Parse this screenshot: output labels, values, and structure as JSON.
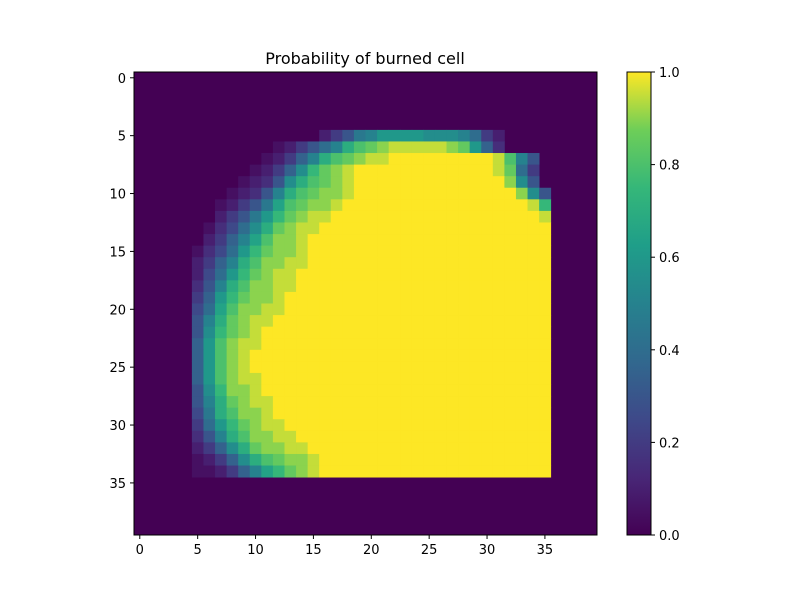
{
  "chart_data": {
    "type": "heatmap",
    "title": "Probability of burned cell",
    "xlabel": "",
    "ylabel": "",
    "grid": false,
    "legend": "colorbar-right",
    "colormap": "viridis",
    "x_ticks": [
      "0",
      "5",
      "10",
      "15",
      "20",
      "25",
      "30",
      "35"
    ],
    "y_ticks": [
      "0",
      "5",
      "10",
      "15",
      "20",
      "25",
      "30",
      "35"
    ],
    "colorbar": {
      "range": [
        0.0,
        1.0
      ],
      "ticks": [
        "0.0",
        "0.2",
        "0.4",
        "0.6",
        "0.8",
        "1.0"
      ]
    },
    "grid_size": [
      40,
      40
    ],
    "burn_region": {
      "x_range": [
        5,
        35
      ],
      "y_range": [
        5,
        35
      ]
    },
    "rows": [
      "",
      "",
      "",
      "",
      "",
      "16:.1,.2,.3,.45,.5,.6,.6,.6,.6,.55,.55,.55,.5,.4,.2,.1",
      "12:.05,.1,.2,.3,.4,.5,.7,.8,.85,.9,.95,.95,.95,.95,.95,.9,.85,.6,.35,.15",
      "11:.05,.1,.2,.35,.5,.7,.8,.85,.9,.95,.95,1,1,1,1,1,1,1,1,1,.95,.8,.5,.3",
      "10:.05,.1,.2,.35,.55,.75,.85,.9,.95,1,1,1,1,1,1,1,1,1,1,1,1,.95,.85,.4,.2",
      "9:.05,.1,.15,.3,.55,.7,.8,.85,.9,.95,1,1,1,1,1,1,1,1,1,1,1,1,1,.9,.55,.3",
      "8:.05,.1,.15,.3,.5,.7,.8,.85,.9,.9,.95,1,1,1,1,1,1,1,1,1,1,1,1,1,1,.9,.55,.3",
      "7:.05,.1,.2,.3,.45,.65,.8,.85,.9,.9,.95,1,1,1,1,1,1,1,1,1,1,1,1,1,1,1,1,.95,.75",
      "7:.1,.2,.3,.45,.6,.75,.85,.9,.95,.95,1,1,1,1,1,1,1,1,1,1,1,1,1,1,1,1,1,1,.95",
      "6:.05,.15,.25,.4,.55,.7,.85,.9,.95,.95,1,1,1,1,1,1,1,1,1,1,1,1,1,1,1,1,1,1,1,1",
      "6:.1,.2,.35,.5,.65,.8,.9,.9,.95,1,1,1,1,1,1,1,1,1,1,1,1,1,1,1,1,1,1,1,1,1",
      "5:.05,.15,.25,.4,.6,.75,.85,.9,.9,.95,1,1,1,1,1,1,1,1,1,1,1,1,1,1,1,1,1,1,1,1,1",
      "5:.1,.2,.35,.5,.7,.8,.9,.9,.95,.95,1,1,1,1,1,1,1,1,1,1,1,1,1,1,1,1,1,1,1,1,1",
      "5:.1,.25,.4,.6,.75,.85,.9,.95,.95,1,1,1,1,1,1,1,1,1,1,1,1,1,1,1,1,1,1,1,1,1,1",
      "5:.15,.3,.5,.7,.8,.9,.9,.95,.95,1,1,1,1,1,1,1,1,1,1,1,1,1,1,1,1,1,1,1,1,1,1",
      "5:.2,.35,.6,.75,.85,.9,.9,.95,1,1,1,1,1,1,1,1,1,1,1,1,1,1,1,1,1,1,1,1,1,1,1",
      "5:.25,.4,.65,.8,.9,.9,.95,.95,1,1,1,1,1,1,1,1,1,1,1,1,1,1,1,1,1,1,1,1,1,1,1",
      "5:.3,.5,.7,.85,.9,.95,.95,1,1,1,1,1,1,1,1,1,1,1,1,1,1,1,1,1,1,1,1,1,1,1,1",
      "5:.3,.55,.75,.85,.9,.95,1,1,1,1,1,1,1,1,1,1,1,1,1,1,1,1,1,1,1,1,1,1,1,1,1",
      "5:.35,.6,.8,.9,.95,.95,1,1,1,1,1,1,1,1,1,1,1,1,1,1,1,1,1,1,1,1,1,1,1,1,1",
      "5:.35,.6,.8,.9,.95,1,1,1,1,1,1,1,1,1,1,1,1,1,1,1,1,1,1,1,1,1,1,1,1,1,1",
      "5:.35,.6,.8,.9,.95,1,1,1,1,1,1,1,1,1,1,1,1,1,1,1,1,1,1,1,1,1,1,1,1,1,1",
      "5:.35,.6,.8,.9,.95,.95,1,1,1,1,1,1,1,1,1,1,1,1,1,1,1,1,1,1,1,1,1,1,1,1,1",
      "5:.3,.55,.75,.9,.9,.95,1,1,1,1,1,1,1,1,1,1,1,1,1,1,1,1,1,1,1,1,1,1,1,1,1",
      "5:.3,.5,.7,.85,.9,.95,.95,1,1,1,1,1,1,1,1,1,1,1,1,1,1,1,1,1,1,1,1,1,1,1,1",
      "5:.25,.45,.7,.8,.9,.9,.95,1,1,1,1,1,1,1,1,1,1,1,1,1,1,1,1,1,1,1,1,1,1,1,1",
      "5:.2,.4,.6,.75,.85,.9,.95,.95,1,1,1,1,1,1,1,1,1,1,1,1,1,1,1,1,1,1,1,1,1,1,1",
      "5:.15,.3,.5,.7,.8,.9,.9,.95,.95,1,1,1,1,1,1,1,1,1,1,1,1,1,1,1,1,1,1,1,1,1,1",
      "5:.1,.2,.35,.55,.7,.85,.9,.9,.95,.95,1,1,1,1,1,1,1,1,1,1,1,1,1,1,1,1,1,1,1,1,1",
      "5:.05,.1,.2,.35,.55,.7,.8,.85,.9,.9,.95,1,1,1,1,1,1,1,1,1,1,1,1,1,1,1,1,1,1,1,1",
      "5:.05,.05,.1,.2,.35,.5,.65,.75,.85,.9,.95,1,1,1,1,1,1,1,1,1,1,1,1,1,1,1,1,1,1,1,1",
      "",
      "",
      "",
      ""
    ]
  }
}
